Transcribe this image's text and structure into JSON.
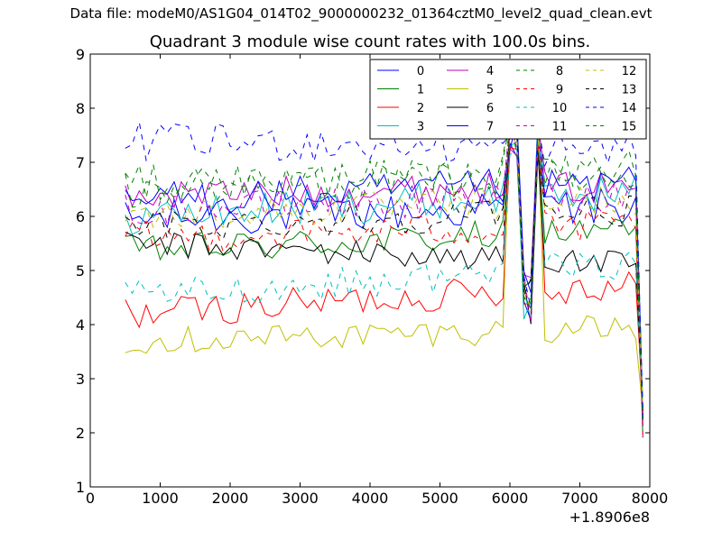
{
  "figure": {
    "suptitle": "Data file: modeM0/AS1G04_014T02_9000000232_01364cztM0_level2_quad_clean.evt"
  },
  "chart_data": {
    "type": "line",
    "title": "Quadrant 3 module wise count rates with 100.0s bins.",
    "xlabel": "",
    "ylabel": "",
    "x_offset_label": "+1.8906e8",
    "xlim": [
      0,
      8000
    ],
    "ylim": [
      1,
      9
    ],
    "x_ticks": [
      0,
      1000,
      2000,
      3000,
      4000,
      5000,
      6000,
      7000,
      8000
    ],
    "y_ticks": [
      1,
      2,
      3,
      4,
      5,
      6,
      7,
      8,
      9
    ],
    "x_tick_labels": [
      "0",
      "1000",
      "2000",
      "3000",
      "4000",
      "5000",
      "6000",
      "7000",
      "8000"
    ],
    "y_tick_labels": [
      "1",
      "2",
      "3",
      "4",
      "5",
      "6",
      "7",
      "8",
      "9"
    ],
    "legend_position": "top-right",
    "legend_columns": 4,
    "x_range": {
      "start": 500,
      "step": 100,
      "count": 75
    },
    "grid": false,
    "series": [
      {
        "name": "0",
        "color": "#0000ff",
        "dash": "solid",
        "base": 5.95,
        "slope": 0.15,
        "amp": 0.35
      },
      {
        "name": "1",
        "color": "#008000",
        "dash": "solid",
        "base": 5.35,
        "slope": 0.25,
        "amp": 0.3
      },
      {
        "name": "2",
        "color": "#ff0000",
        "dash": "solid",
        "base": 4.2,
        "slope": 0.35,
        "amp": 0.3
      },
      {
        "name": "3",
        "color": "#00bfbf",
        "dash": "solid",
        "base": 6.0,
        "slope": 0.3,
        "amp": 0.35
      },
      {
        "name": "4",
        "color": "#bf00bf",
        "dash": "solid",
        "base": 6.4,
        "slope": 0.1,
        "amp": 0.3
      },
      {
        "name": "5",
        "color": "#bfbf00",
        "dash": "solid",
        "base": 3.7,
        "slope": 0.15,
        "amp": 0.25
      },
      {
        "name": "6",
        "color": "#000000",
        "dash": "solid",
        "base": 5.5,
        "slope": -0.25,
        "amp": 0.25
      },
      {
        "name": "7",
        "color": "#0000ff",
        "dash": "solid",
        "base": 6.3,
        "slope": 0.2,
        "amp": 0.35
      },
      {
        "name": "8",
        "color": "#008000",
        "dash": "dashed",
        "base": 6.5,
        "slope": 0.25,
        "amp": 0.35
      },
      {
        "name": "9",
        "color": "#ff0000",
        "dash": "dashed",
        "base": 5.6,
        "slope": 0.15,
        "amp": 0.3
      },
      {
        "name": "10",
        "color": "#00bfbf",
        "dash": "dashed",
        "base": 4.5,
        "slope": 0.4,
        "amp": 0.3
      },
      {
        "name": "11",
        "color": "#bf00bf",
        "dash": "dashed",
        "base": 6.1,
        "slope": 0.2,
        "amp": 0.3
      },
      {
        "name": "12",
        "color": "#bfbf00",
        "dash": "dashed",
        "base": 6.0,
        "slope": 0.2,
        "amp": 0.3
      },
      {
        "name": "13",
        "color": "#000000",
        "dash": "dashed",
        "base": 5.8,
        "slope": 0.2,
        "amp": 0.3
      },
      {
        "name": "14",
        "color": "#0000ff",
        "dash": "dashed",
        "base": 7.4,
        "slope": -0.1,
        "amp": 0.35
      },
      {
        "name": "15",
        "color": "#008000",
        "dash": "dashed",
        "base": 6.6,
        "slope": 0.1,
        "amp": 0.35
      }
    ],
    "features": {
      "dip_x": 6250,
      "dip_value": 4.5,
      "spike_x": [
        6050,
        6400
      ],
      "spike_value": 7.5,
      "end_value": 2.2
    }
  }
}
